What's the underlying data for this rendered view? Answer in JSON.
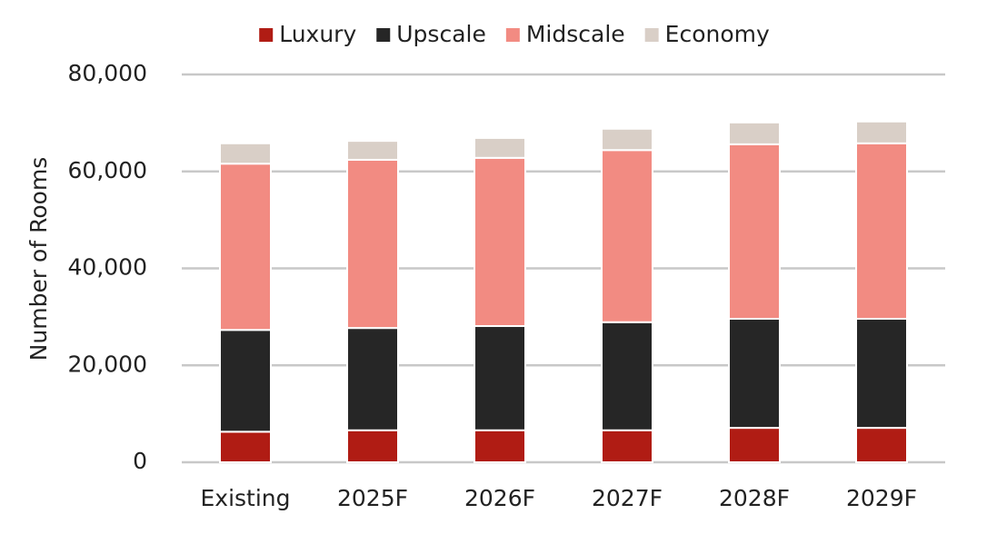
{
  "chart_data": {
    "type": "stacked_bar",
    "y_label": "Number of Rooms",
    "categories": [
      "Existing",
      "2025F",
      "2026F",
      "2027F",
      "2028F",
      "2029F"
    ],
    "series": [
      {
        "name": "Luxury",
        "color": "#b01c14",
        "values": [
          6300,
          6600,
          6600,
          6600,
          7100,
          7100
        ]
      },
      {
        "name": "Upscale",
        "color": "#262626",
        "values": [
          21000,
          21100,
          21500,
          22300,
          22500,
          22500
        ]
      },
      {
        "name": "Midscale",
        "color": "#f28b82",
        "values": [
          34300,
          34700,
          34700,
          35500,
          36000,
          36200
        ]
      },
      {
        "name": "Economy",
        "color": "#d9cfc7",
        "values": [
          4200,
          3900,
          4100,
          4400,
          4500,
          4500
        ]
      }
    ],
    "ylim": [
      0,
      80000
    ],
    "yticks": [
      0,
      {
        "value": 20000,
        "label": "20,000"
      },
      {
        "value": 40000,
        "label": "40,000"
      },
      {
        "value": 60000,
        "label": "60,000"
      },
      {
        "value": 80000,
        "label": "80,000"
      }
    ],
    "grid": true,
    "legend": "top"
  }
}
